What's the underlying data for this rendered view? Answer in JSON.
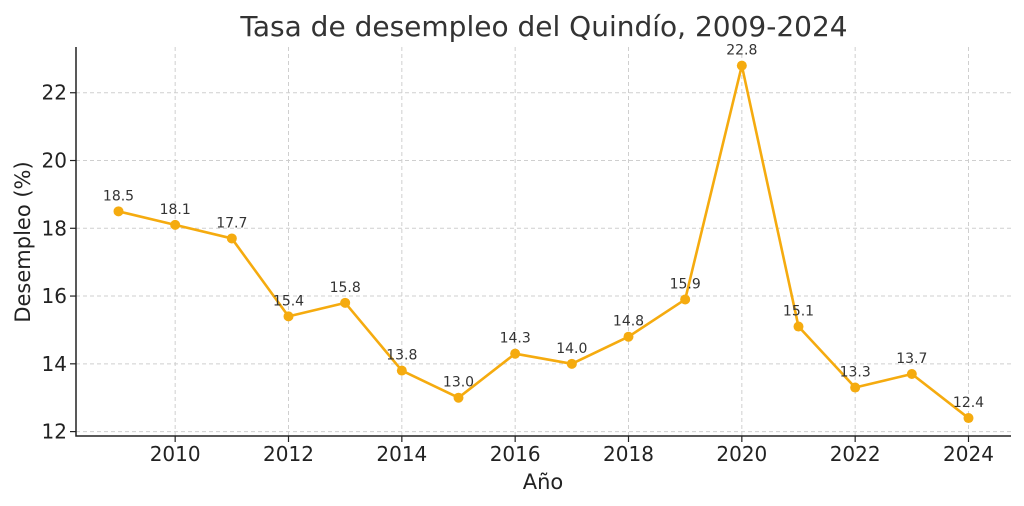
{
  "chart_data": {
    "type": "line",
    "title": "Tasa de desempleo del Quindío, 2009-2024",
    "xlabel": "Año",
    "ylabel": "Desempleo (%)",
    "x": [
      2009,
      2010,
      2011,
      2012,
      2013,
      2014,
      2015,
      2016,
      2017,
      2018,
      2019,
      2020,
      2021,
      2022,
      2023,
      2024
    ],
    "series": [
      {
        "values": [
          18.5,
          18.1,
          17.7,
          15.4,
          15.8,
          13.8,
          13.0,
          14.3,
          14.0,
          14.8,
          15.9,
          22.8,
          15.1,
          13.3,
          13.7,
          12.4
        ],
        "labels": [
          "18.5",
          "18.1",
          "17.7",
          "15.4",
          "15.8",
          "13.8",
          "13.0",
          "14.3",
          "14.0",
          "14.8",
          "15.9",
          "22.8",
          "15.1",
          "13.3",
          "13.7",
          "12.4"
        ],
        "color": "#f5ab0f"
      }
    ],
    "x_ticks": [
      "2010",
      "2012",
      "2014",
      "2016",
      "2018",
      "2020",
      "2022",
      "2024"
    ],
    "y_ticks": [
      "12",
      "14",
      "16",
      "18",
      "20",
      "22"
    ],
    "xlim": [
      2008.25,
      2024.75
    ],
    "ylim": [
      11.87,
      23.35
    ],
    "grid": true
  }
}
